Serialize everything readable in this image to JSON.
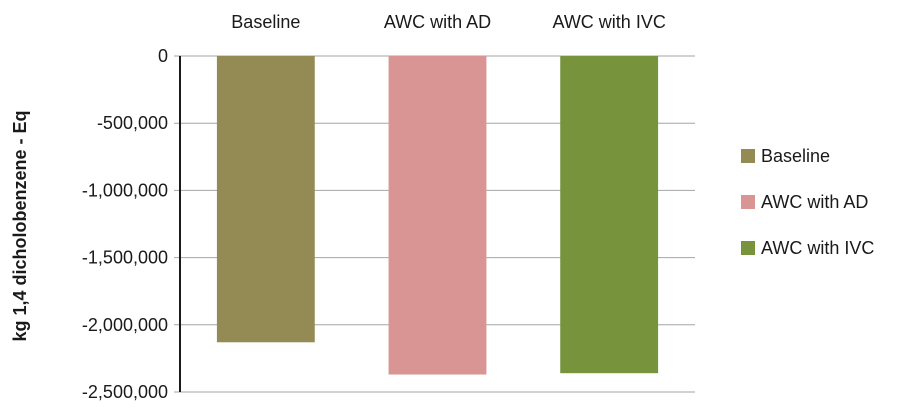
{
  "chart_data": {
    "type": "bar",
    "title": "",
    "xlabel": "",
    "ylabel": "kg 1,4 dicholobenzene - Eq",
    "categories": [
      "Baseline",
      "AWC with AD",
      "AWC with IVC"
    ],
    "values": [
      -2130000,
      -2370000,
      -2360000
    ],
    "colors": [
      "#948a54",
      "#d99594",
      "#77933c"
    ],
    "ylim": [
      -2500000,
      0
    ],
    "yticks": [
      0,
      -500000,
      -1000000,
      -1500000,
      -2000000,
      -2500000
    ],
    "ytick_labels": [
      "0",
      "-500,000",
      "-1,000,000",
      "-1,500,000",
      "-2,000,000",
      "-2,500,000"
    ],
    "category_axis_position": "top",
    "grid": true,
    "legend": {
      "position": "right",
      "entries": [
        "Baseline",
        "AWC with AD",
        "AWC with IVC"
      ]
    }
  }
}
